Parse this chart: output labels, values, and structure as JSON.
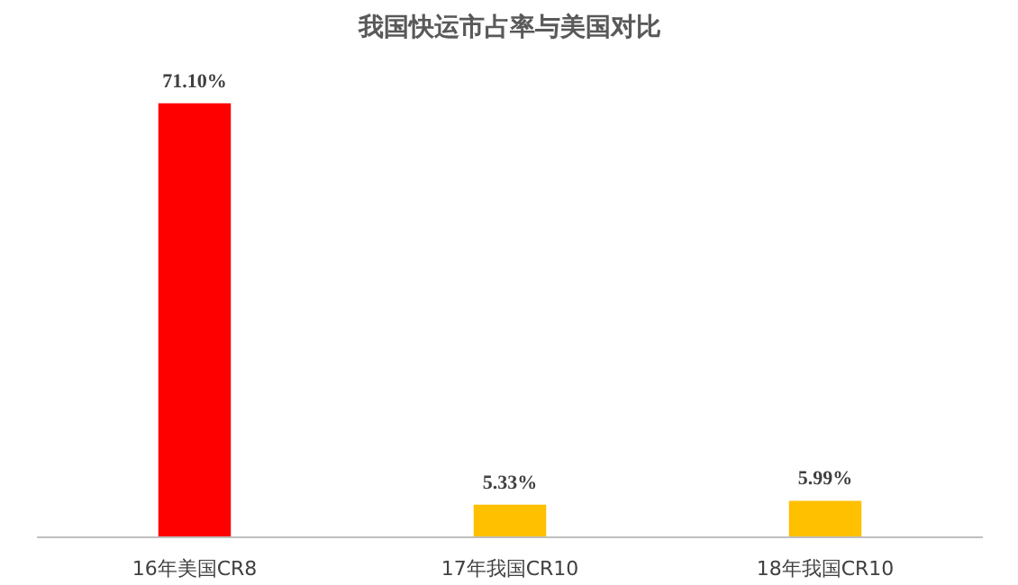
{
  "chart_data": {
    "type": "bar",
    "title": "我国快运市占率与美国对比",
    "categories": [
      "16年美国CR8",
      "17年我国CR10",
      "18年我国CR10"
    ],
    "values": [
      71.1,
      5.33,
      5.99
    ],
    "colors": [
      "#ff0000",
      "#ffc000",
      "#ffc000"
    ],
    "value_labels": [
      "71.10%",
      "5.33%",
      "5.99%"
    ],
    "grid": false
  }
}
